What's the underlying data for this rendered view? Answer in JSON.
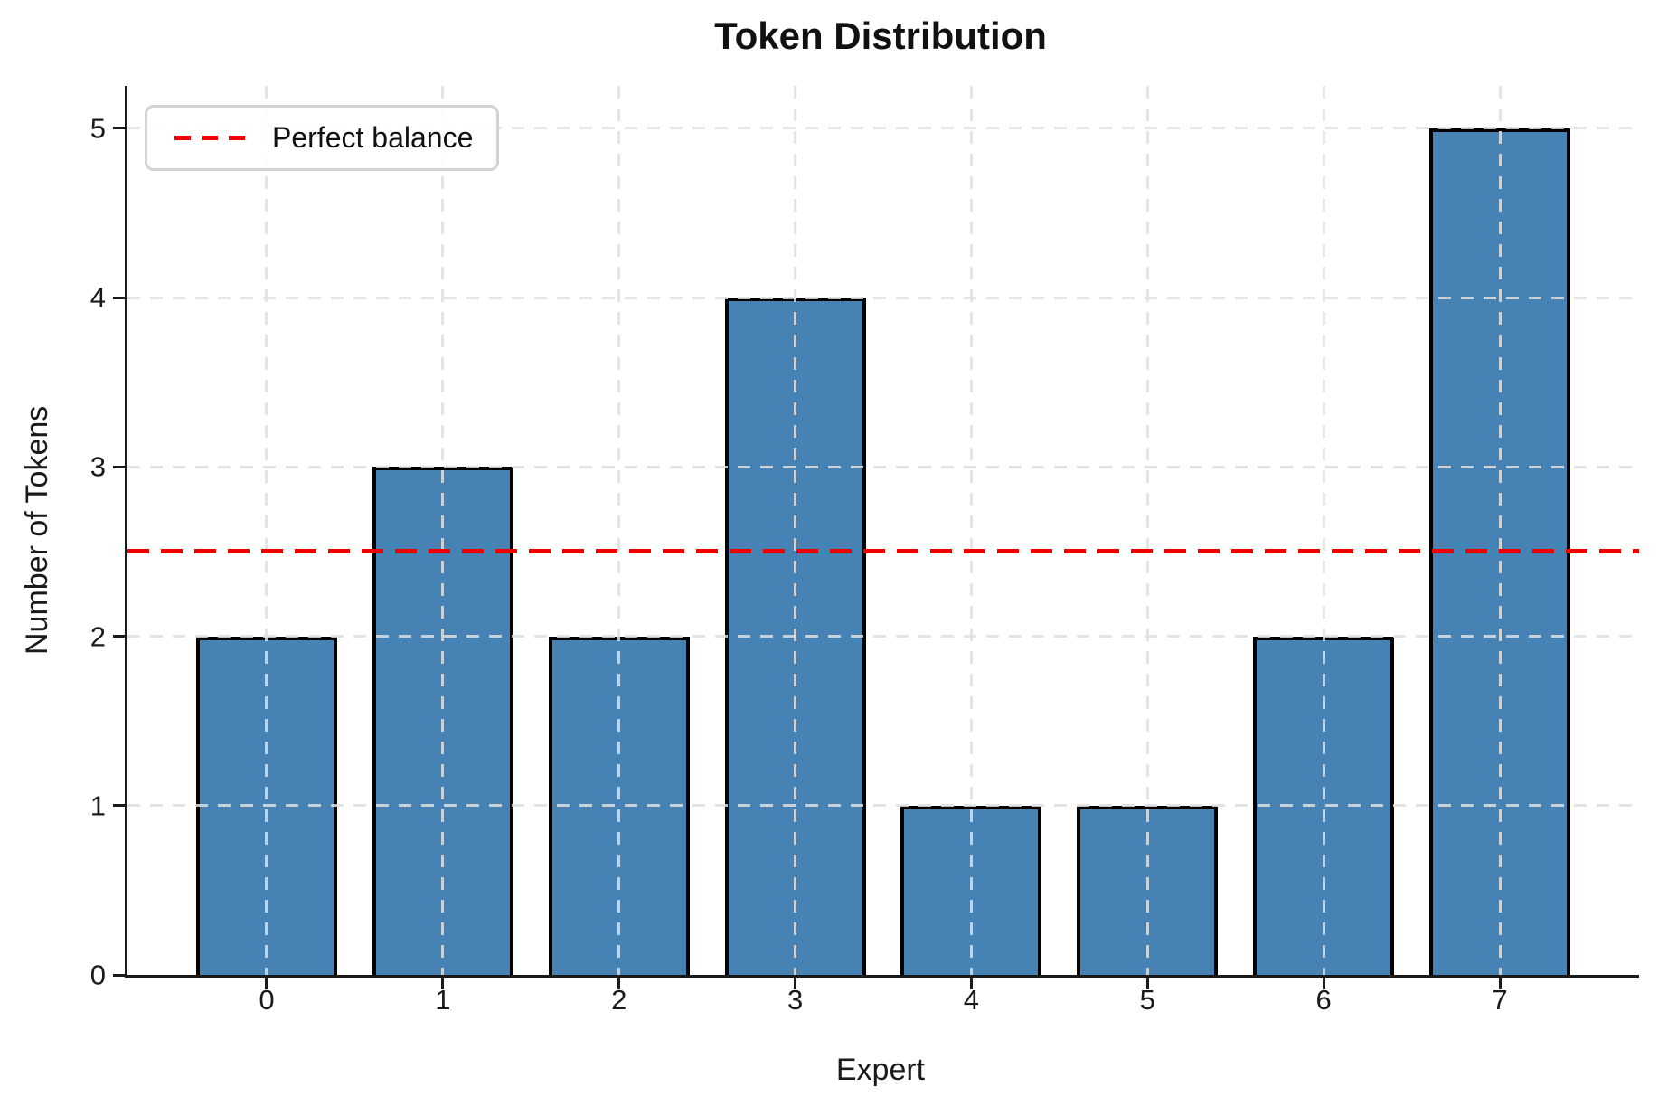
{
  "chart_data": {
    "type": "bar",
    "title": "Token Distribution",
    "xlabel": "Expert",
    "ylabel": "Number of Tokens",
    "categories": [
      "0",
      "1",
      "2",
      "3",
      "4",
      "5",
      "6",
      "7"
    ],
    "values": [
      2,
      3,
      2,
      4,
      1,
      1,
      2,
      5
    ],
    "yticks": [
      0,
      1,
      2,
      3,
      4,
      5
    ],
    "ylim": [
      0,
      5.25
    ],
    "xlim": [
      -0.79,
      7.79
    ],
    "bar_width": 0.8,
    "grid": true,
    "legend_position": "upper left",
    "reference_line": {
      "y": 2.5,
      "label": "Perfect balance",
      "style": "dashed"
    },
    "colors": {
      "bar_fill": "#4682b4",
      "bar_edge": "#000000",
      "grid_line": "#dfdfdf",
      "reference_line": "#ee0000",
      "text": "#1a1a1a"
    }
  }
}
